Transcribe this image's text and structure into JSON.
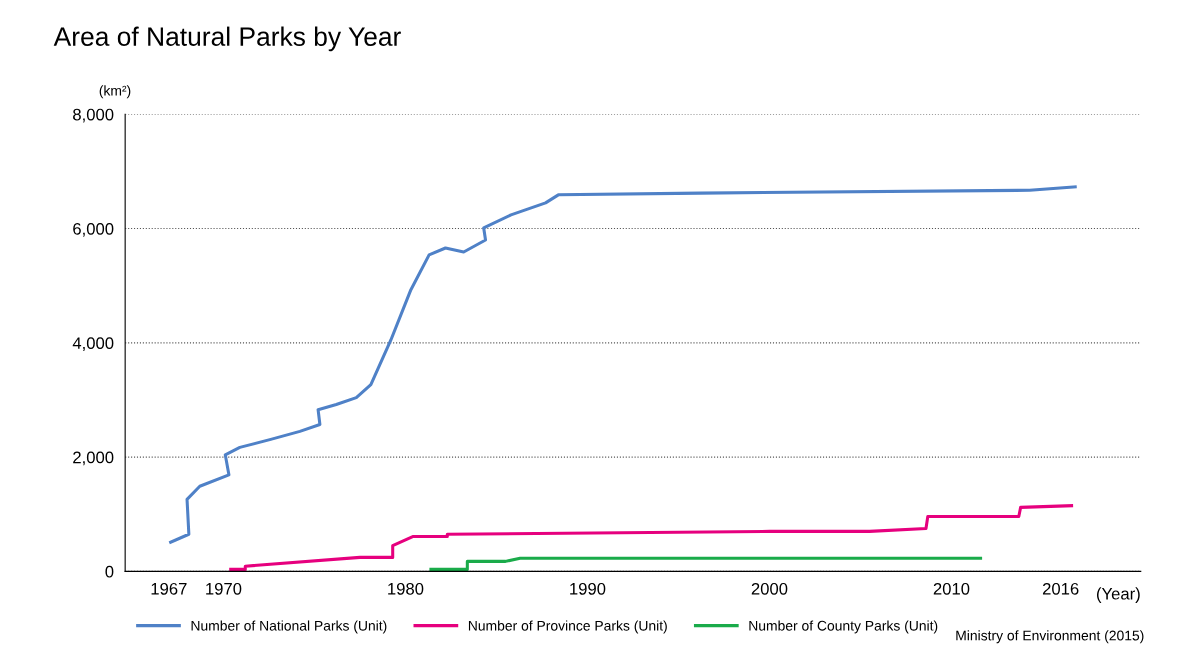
{
  "chart_data": {
    "type": "line",
    "title": "Area of Natural Parks by Year",
    "ylabel": "(km²)",
    "xlabel": "(Year)",
    "annotations": [
      "Ministry of Environment (2015)"
    ],
    "xlim": [
      1964.6,
      2020.4
    ],
    "xticks": [
      1967,
      1970,
      1980,
      1990,
      2000,
      2010,
      2016
    ],
    "ylim": [
      0,
      8000
    ],
    "yticks": [
      {
        "value": 0,
        "label": "0"
      },
      {
        "value": 2000,
        "label": "2,000"
      },
      {
        "value": 4000,
        "label": "4,000"
      },
      {
        "value": 6000,
        "label": "6,000"
      },
      {
        "value": 8000,
        "label": "8,000"
      }
    ],
    "grid": "y",
    "legend": "bottom",
    "series": [
      {
        "name": "Number of National Parks (Unit)",
        "color": "#4f81c7",
        "x": [
          1967.1,
          1968.1,
          1968.0,
          1968.7,
          1970.3,
          1970.1,
          1970.9,
          1972.6,
          1974.2,
          1975.3,
          1975.2,
          1976.2,
          1977.3,
          1978.1,
          1979.2,
          1980.3,
          1981.3,
          1982.2,
          1983.2,
          1984.4,
          1984.3,
          1985.8,
          1987.7,
          1988.4,
          1996.2,
          2014.3,
          2016.8
        ],
        "values": [
          510,
          650,
          1260,
          1490,
          1690,
          2040,
          2170,
          2310,
          2450,
          2570,
          2830,
          2920,
          3040,
          3270,
          4050,
          4930,
          5540,
          5660,
          5590,
          5800,
          6010,
          6240,
          6450,
          6590,
          6620,
          6670,
          6730
        ]
      },
      {
        "name": "Number of Province Parks (Unit)",
        "color": "#e6007e",
        "x": [
          1970.4,
          1971.2,
          1971.2,
          1977.5,
          1979.3,
          1979.3,
          1980.4,
          1982.3,
          1982.3,
          2000.0,
          2005.5,
          2008.6,
          2008.7,
          2013.7,
          2013.8,
          2016.6
        ],
        "values": [
          35,
          35,
          90,
          245,
          245,
          450,
          610,
          610,
          650,
          700,
          700,
          750,
          960,
          960,
          1120,
          1150
        ]
      },
      {
        "name": "Number of County Parks (Unit)",
        "color": "#1aab4a",
        "x": [
          1981.4,
          1983.4,
          1983.4,
          1985.5,
          1986.3,
          2011.6
        ],
        "values": [
          35,
          35,
          175,
          175,
          230,
          230
        ]
      }
    ]
  }
}
